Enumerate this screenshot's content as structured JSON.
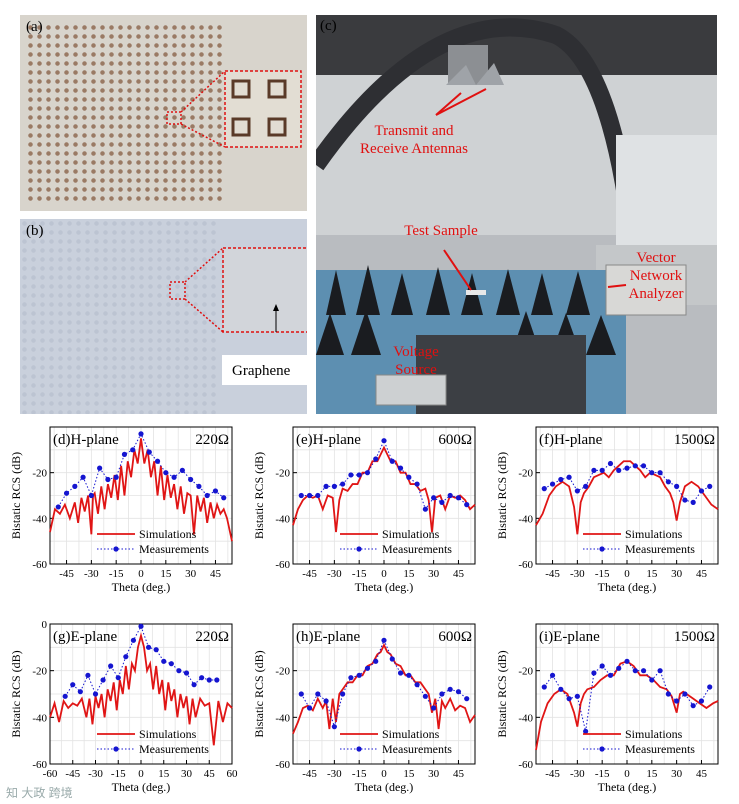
{
  "photos": {
    "a": {
      "label": "(a)"
    },
    "b": {
      "label": "(b)",
      "inset_label": "Graphene"
    },
    "c": {
      "label": "(c)",
      "ann_antennas_1": "Transmit and",
      "ann_antennas_2": "Receive Antennas",
      "ann_sample": "Test Sample",
      "ann_vna_1": "Vector",
      "ann_vna_2": "Network",
      "ann_vna_3": "Analyzer",
      "ann_vs_1": "Voltage",
      "ann_vs_2": "Source"
    }
  },
  "watermark": "知 大政 跨境",
  "colors": {
    "simulation": "#e01515",
    "measurement": "#1515d0"
  },
  "chart_data": [
    {
      "id": "d",
      "type": "line",
      "panel": "(d)",
      "plane": "H-plane",
      "resistance": "220Ω",
      "xlabel": "Theta (deg.)",
      "ylabel": "Bistatic RCS (dB)",
      "xlim": [
        -55,
        55
      ],
      "ylim": [
        -60,
        0
      ],
      "xticks": [
        -45,
        -30,
        -15,
        0,
        15,
        30,
        45
      ],
      "yticks": [
        -60,
        -40,
        -20
      ],
      "legend": [
        "Simulations",
        "Measurements"
      ],
      "series": [
        {
          "name": "Simulations",
          "x": [
            -55,
            -52,
            -49,
            -46,
            -43,
            -40,
            -38,
            -36,
            -34,
            -32,
            -30,
            -29,
            -28,
            -26,
            -24,
            -22,
            -20,
            -18,
            -16,
            -14,
            -12,
            -10,
            -8,
            -6,
            -4,
            -2,
            0,
            2,
            4,
            6,
            8,
            10,
            12,
            14,
            16,
            18,
            20,
            22,
            24,
            26,
            28,
            30,
            32,
            34,
            36,
            38,
            40,
            42,
            44,
            46,
            48,
            50,
            52,
            55
          ],
          "y": [
            -46,
            -36,
            -38,
            -34,
            -40,
            -33,
            -42,
            -31,
            -37,
            -30,
            -47,
            -30,
            -29,
            -38,
            -26,
            -36,
            -25,
            -31,
            -21,
            -32,
            -17,
            -30,
            -15,
            -22,
            -10,
            -16,
            -5,
            -16,
            -10,
            -22,
            -15,
            -30,
            -17,
            -32,
            -21,
            -31,
            -25,
            -36,
            -26,
            -38,
            -29,
            -30,
            -47,
            -30,
            -37,
            -31,
            -42,
            -33,
            -40,
            -34,
            -38,
            -36,
            -40,
            -50
          ]
        },
        {
          "name": "Measurements",
          "x": [
            -50,
            -45,
            -40,
            -35,
            -30,
            -25,
            -20,
            -15,
            -10,
            -5,
            0,
            5,
            10,
            15,
            20,
            25,
            30,
            35,
            40,
            45,
            50
          ],
          "y": [
            -35,
            -29,
            -26,
            -22,
            -30,
            -18,
            -23,
            -22,
            -12,
            -10,
            -3,
            -11,
            -15,
            -20,
            -22,
            -19,
            -23,
            -26,
            -30,
            -28,
            -31
          ]
        }
      ]
    },
    {
      "id": "e",
      "type": "line",
      "panel": "(e)",
      "plane": "H-plane",
      "resistance": "600Ω",
      "xlabel": "Theta (deg.)",
      "ylabel": "Bistatic RCS (dB)",
      "xlim": [
        -55,
        55
      ],
      "ylim": [
        -60,
        0
      ],
      "xticks": [
        -45,
        -30,
        -15,
        0,
        15,
        30,
        45
      ],
      "yticks": [
        -60,
        -40,
        -20
      ],
      "legend": [
        "Simulations",
        "Measurements"
      ],
      "series": [
        {
          "name": "Simulations",
          "x": [
            -55,
            -52,
            -49,
            -46,
            -43,
            -40,
            -37,
            -34,
            -31,
            -29,
            -27,
            -25,
            -22,
            -19,
            -16,
            -13,
            -10,
            -7,
            -4,
            -2,
            0,
            2,
            4,
            7,
            10,
            13,
            16,
            19,
            22,
            25,
            27,
            29,
            31,
            34,
            37,
            40,
            43,
            46,
            49,
            52,
            55
          ],
          "y": [
            -43,
            -36,
            -32,
            -30,
            -31,
            -30,
            -36,
            -30,
            -31,
            -46,
            -32,
            -27,
            -28,
            -25,
            -25,
            -20,
            -20,
            -15,
            -15,
            -12,
            -9,
            -12,
            -15,
            -15,
            -20,
            -20,
            -25,
            -25,
            -28,
            -27,
            -32,
            -46,
            -31,
            -30,
            -36,
            -30,
            -31,
            -30,
            -32,
            -36,
            -34
          ]
        },
        {
          "name": "Measurements",
          "x": [
            -50,
            -45,
            -40,
            -35,
            -30,
            -25,
            -20,
            -15,
            -10,
            -5,
            0,
            5,
            10,
            15,
            20,
            25,
            30,
            35,
            40,
            45,
            50
          ],
          "y": [
            -30,
            -30,
            -30,
            -26,
            -26,
            -25,
            -21,
            -21,
            -20,
            -14,
            -6,
            -15,
            -18,
            -22,
            -25,
            -36,
            -31,
            -33,
            -30,
            -31,
            -34
          ]
        }
      ]
    },
    {
      "id": "f",
      "type": "line",
      "panel": "(f)",
      "plane": "H-plane",
      "resistance": "1500Ω",
      "xlabel": "Theta (deg.)",
      "ylabel": "Bistatic RCS (dB)",
      "xlim": [
        -55,
        55
      ],
      "ylim": [
        -60,
        0
      ],
      "xticks": [
        -45,
        -30,
        -15,
        0,
        15,
        30,
        45
      ],
      "yticks": [
        -60,
        -40,
        -20
      ],
      "legend": [
        "Simulations",
        "Measurements"
      ],
      "series": [
        {
          "name": "Simulations",
          "x": [
            -55,
            -51,
            -47,
            -43,
            -39,
            -35,
            -32,
            -30,
            -28,
            -26,
            -23,
            -20,
            -17,
            -14,
            -11,
            -8,
            -5,
            -2,
            0,
            2,
            5,
            8,
            11,
            14,
            17,
            20,
            23,
            26,
            28,
            30,
            32,
            35,
            39,
            43,
            47,
            51,
            55
          ],
          "y": [
            -43,
            -38,
            -30,
            -26,
            -24,
            -26,
            -35,
            -47,
            -33,
            -29,
            -26,
            -22,
            -21,
            -20,
            -22,
            -19,
            -17,
            -15,
            -15,
            -15,
            -17,
            -19,
            -22,
            -20,
            -21,
            -22,
            -26,
            -29,
            -33,
            -41,
            -33,
            -26,
            -24,
            -26,
            -30,
            -34,
            -36
          ]
        },
        {
          "name": "Measurements",
          "x": [
            -50,
            -45,
            -40,
            -35,
            -30,
            -25,
            -20,
            -15,
            -10,
            -5,
            0,
            5,
            10,
            15,
            20,
            25,
            30,
            35,
            40,
            45,
            50
          ],
          "y": [
            -27,
            -25,
            -23,
            -22,
            -28,
            -26,
            -19,
            -19,
            -16,
            -19,
            -18,
            -17,
            -17,
            -20,
            -20,
            -24,
            -26,
            -32,
            -33,
            -28,
            -26
          ]
        }
      ]
    },
    {
      "id": "g",
      "type": "line",
      "panel": "(g)",
      "plane": "E-plane",
      "resistance": "220Ω",
      "xlabel": "Theta (deg.)",
      "ylabel": "Bistatic RCS (dB)",
      "xlim": [
        -60,
        60
      ],
      "ylim": [
        -60,
        0
      ],
      "xticks": [
        -60,
        -45,
        -30,
        -15,
        0,
        15,
        30,
        45,
        60
      ],
      "yticks": [
        -60,
        -40,
        -20,
        0
      ],
      "legend": [
        "Simulations",
        "Measurements"
      ],
      "series": [
        {
          "name": "Simulations",
          "x": [
            -60,
            -57,
            -54,
            -51,
            -48,
            -45,
            -42,
            -39,
            -36,
            -34,
            -32,
            -30,
            -28,
            -26,
            -24,
            -22,
            -20,
            -18,
            -16,
            -14,
            -12,
            -10,
            -8,
            -6,
            -4,
            -2,
            0,
            2,
            4,
            6,
            8,
            10,
            12,
            14,
            16,
            18,
            20,
            22,
            24,
            26,
            28,
            30,
            32,
            34,
            36,
            39,
            42,
            45,
            48,
            51,
            54,
            57,
            60
          ],
          "y": [
            -40,
            -34,
            -42,
            -33,
            -36,
            -34,
            -35,
            -32,
            -40,
            -32,
            -43,
            -31,
            -36,
            -30,
            -40,
            -28,
            -33,
            -25,
            -37,
            -24,
            -30,
            -18,
            -28,
            -17,
            -20,
            -10,
            -5,
            -10,
            -20,
            -17,
            -28,
            -18,
            -30,
            -24,
            -37,
            -25,
            -33,
            -28,
            -40,
            -30,
            -36,
            -31,
            -43,
            -32,
            -40,
            -32,
            -35,
            -34,
            -52,
            -33,
            -42,
            -34,
            -36
          ]
        },
        {
          "name": "Measurements",
          "x": [
            -50,
            -45,
            -40,
            -35,
            -30,
            -25,
            -20,
            -15,
            -10,
            -5,
            0,
            5,
            10,
            15,
            20,
            25,
            30,
            35,
            40,
            45,
            50
          ],
          "y": [
            -31,
            -26,
            -29,
            -22,
            -30,
            -24,
            -18,
            -23,
            -14,
            -7,
            -1,
            -10,
            -11,
            -16,
            -17,
            -20,
            -21,
            -26,
            -23,
            -24,
            -24
          ]
        }
      ]
    },
    {
      "id": "h",
      "type": "line",
      "panel": "(h)",
      "plane": "E-plane",
      "resistance": "600Ω",
      "xlabel": "Theta (deg.)",
      "ylabel": "Bistatic RCS (dB)",
      "xlim": [
        -55,
        55
      ],
      "ylim": [
        -60,
        0
      ],
      "xticks": [
        -45,
        -30,
        -15,
        0,
        15,
        30,
        45
      ],
      "yticks": [
        -60,
        -40,
        -20
      ],
      "legend": [
        "Simulations",
        "Measurements"
      ],
      "series": [
        {
          "name": "Simulations",
          "x": [
            -55,
            -52,
            -49,
            -46,
            -43,
            -40,
            -37,
            -35,
            -33,
            -31,
            -29,
            -27,
            -25,
            -22,
            -19,
            -16,
            -13,
            -10,
            -7,
            -4,
            -2,
            0,
            2,
            4,
            7,
            10,
            13,
            16,
            19,
            22,
            25,
            27,
            29,
            31,
            33,
            35,
            37,
            40,
            43,
            46,
            49,
            52,
            55
          ],
          "y": [
            -47,
            -42,
            -36,
            -35,
            -37,
            -32,
            -36,
            -33,
            -45,
            -32,
            -42,
            -30,
            -28,
            -25,
            -25,
            -22,
            -22,
            -18,
            -17,
            -13,
            -12,
            -9,
            -12,
            -13,
            -17,
            -18,
            -22,
            -22,
            -25,
            -25,
            -28,
            -30,
            -38,
            -32,
            -45,
            -33,
            -36,
            -32,
            -37,
            -35,
            -36,
            -42,
            -39
          ]
        },
        {
          "name": "Measurements",
          "x": [
            -50,
            -45,
            -40,
            -35,
            -30,
            -25,
            -20,
            -15,
            -10,
            -5,
            0,
            5,
            10,
            15,
            20,
            25,
            30,
            35,
            40,
            45,
            50
          ],
          "y": [
            -30,
            -36,
            -30,
            -33,
            -44,
            -30,
            -23,
            -22,
            -19,
            -16,
            -7,
            -15,
            -21,
            -22,
            -26,
            -31,
            -36,
            -30,
            -28,
            -29,
            -32
          ]
        }
      ]
    },
    {
      "id": "i",
      "type": "line",
      "panel": "(i)",
      "plane": "E-plane",
      "resistance": "1500Ω",
      "xlabel": "Theta (deg.)",
      "ylabel": "Bistatic RCS (dB)",
      "xlim": [
        -55,
        55
      ],
      "ylim": [
        -60,
        0
      ],
      "xticks": [
        -45,
        -30,
        -15,
        0,
        15,
        30,
        45
      ],
      "yticks": [
        -60,
        -40,
        -20
      ],
      "legend": [
        "Simulations",
        "Measurements"
      ],
      "series": [
        {
          "name": "Simulations",
          "x": [
            -55,
            -52,
            -48,
            -44,
            -40,
            -36,
            -32,
            -30,
            -28,
            -26,
            -24,
            -20,
            -16,
            -12,
            -8,
            -4,
            0,
            4,
            8,
            12,
            16,
            20,
            24,
            27,
            30,
            32,
            34,
            36,
            40,
            44,
            48,
            52,
            55
          ],
          "y": [
            -54,
            -42,
            -34,
            -30,
            -28,
            -30,
            -38,
            -44,
            -34,
            -30,
            -28,
            -27,
            -24,
            -22,
            -22,
            -17,
            -16,
            -18,
            -22,
            -22,
            -24,
            -27,
            -28,
            -31,
            -38,
            -30,
            -29,
            -30,
            -32,
            -34,
            -36,
            -34,
            -33
          ]
        },
        {
          "name": "Measurements",
          "x": [
            -50,
            -45,
            -40,
            -35,
            -30,
            -25,
            -20,
            -15,
            -10,
            -5,
            0,
            5,
            10,
            15,
            20,
            25,
            30,
            35,
            40,
            45,
            50
          ],
          "y": [
            -27,
            -22,
            -28,
            -32,
            -31,
            -46,
            -21,
            -18,
            -22,
            -19,
            -16,
            -20,
            -20,
            -24,
            -20,
            -30,
            -33,
            -30,
            -35,
            -33,
            -27
          ]
        }
      ]
    }
  ]
}
